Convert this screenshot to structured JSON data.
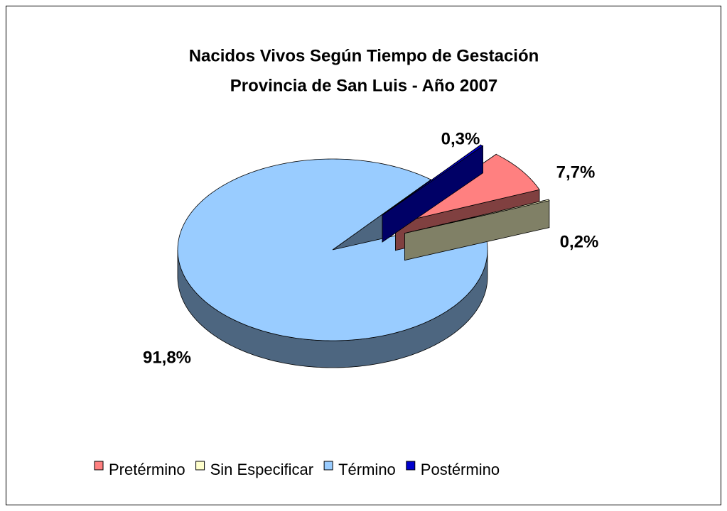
{
  "chart_data": {
    "type": "pie",
    "title": "Nacidos Vivos Según Tiempo de Gestación",
    "subtitle": "Provincia de San Luis - Año 2007",
    "categories": [
      "Pretérmino",
      "Sin Especificar",
      "Término",
      "Postérmino"
    ],
    "values": [
      7.7,
      0.2,
      91.8,
      0.3
    ],
    "value_labels": [
      "7,7%",
      "0,2%",
      "91,8%",
      "0,3%"
    ],
    "colors": [
      "#ff8080",
      "#ffffcc",
      "#99ccff",
      "#0000cc"
    ],
    "legend": "bottom"
  }
}
